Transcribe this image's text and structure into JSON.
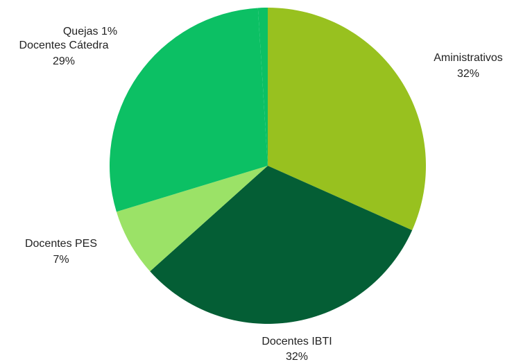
{
  "chart_data": {
    "type": "pie",
    "title": "",
    "labels": [
      "Aministrativos",
      "Docentes IBTI",
      "Docentes PES",
      "Docentes Cátedra",
      "Quejas"
    ],
    "values": [
      32,
      32,
      7,
      29,
      1
    ],
    "percent_labels": [
      "32%",
      "32%",
      "7%",
      "29%",
      "1%"
    ],
    "colors": [
      "#98c11f",
      "#045e35",
      "#9be267",
      "#0cc064",
      "#0cc064"
    ],
    "start_angle_deg": 0,
    "direction": "clockwise",
    "legend": "none"
  },
  "labels_text": {
    "aministrativos_name": "Aministrativos",
    "aministrativos_pct": "32%",
    "ibti_name": "Docentes IBTI",
    "ibti_pct": "32%",
    "pes_name": "Docentes PES",
    "pes_pct": "7%",
    "catedra_name": "Docentes Cátedra",
    "catedra_pct": "29%",
    "quejas": "Quejas 1%"
  }
}
